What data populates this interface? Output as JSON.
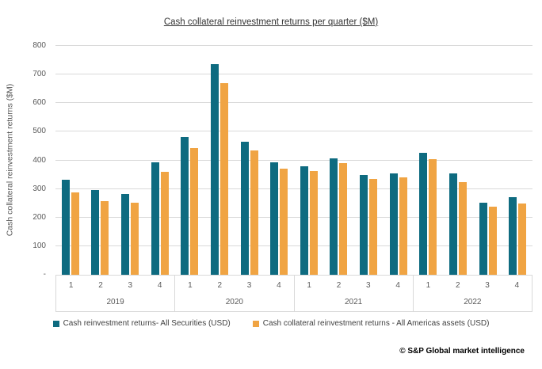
{
  "footer": "© S&P Global market intelligence",
  "chart_data": {
    "type": "bar",
    "title": "Cash collateral reinvestment returns per quarter ($M)",
    "xlabel": "",
    "ylabel": "Cash collateral reinvestment returns ($M)",
    "ylim": [
      0,
      800
    ],
    "ytick_step": 100,
    "ytick_labels": [
      "-",
      "100",
      "200",
      "300",
      "400",
      "500",
      "600",
      "700",
      "800"
    ],
    "grid": true,
    "legend_position": "bottom",
    "years": [
      "2019",
      "2020",
      "2021",
      "2022"
    ],
    "quarters": [
      "1",
      "2",
      "3",
      "4"
    ],
    "categories": [
      "2019 Q1",
      "2019 Q2",
      "2019 Q3",
      "2019 Q4",
      "2020 Q1",
      "2020 Q2",
      "2020 Q3",
      "2020 Q4",
      "2021 Q1",
      "2021 Q2",
      "2021 Q3",
      "2021 Q4",
      "2022 Q1",
      "2022 Q2",
      "2022 Q3",
      "2022 Q4"
    ],
    "series": [
      {
        "name": "Cash reinvestment returns- All Securities (USD)",
        "color": "#0E6B80",
        "values": [
          332,
          296,
          282,
          393,
          483,
          736,
          465,
          392,
          378,
          408,
          350,
          355,
          425,
          353,
          253,
          272
        ]
      },
      {
        "name": "Cash collateral reinvestment returns - All Americas assets (USD)",
        "color": "#F0A443",
        "values": [
          288,
          257,
          252,
          360,
          443,
          670,
          435,
          371,
          362,
          390,
          336,
          340,
          403,
          325,
          239,
          250
        ]
      }
    ],
    "colors": {
      "gridline": "#d9d9d9",
      "axis_text": "#595959",
      "title_text": "#333333",
      "legend_text": "#404040"
    }
  }
}
